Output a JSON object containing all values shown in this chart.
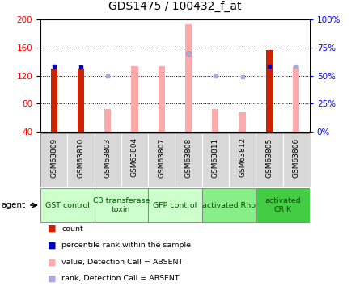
{
  "title": "GDS1475 / 100432_f_at",
  "samples": [
    "GSM63809",
    "GSM63810",
    "GSM63803",
    "GSM63804",
    "GSM63807",
    "GSM63808",
    "GSM63811",
    "GSM63812",
    "GSM63805",
    "GSM63806"
  ],
  "group_spans": [
    {
      "start": 0,
      "end": 2,
      "name": "GST control",
      "color": "#ccffcc"
    },
    {
      "start": 2,
      "end": 4,
      "name": "C3 transferase\ntoxin",
      "color": "#ccffcc"
    },
    {
      "start": 4,
      "end": 6,
      "name": "GFP control",
      "color": "#ccffcc"
    },
    {
      "start": 6,
      "end": 8,
      "name": "activated Rho",
      "color": "#88ee88"
    },
    {
      "start": 8,
      "end": 10,
      "name": "activated\nCRIK",
      "color": "#44cc44"
    }
  ],
  "red_bars": [
    130,
    130,
    null,
    null,
    null,
    null,
    null,
    null,
    157,
    null
  ],
  "blue_dots": [
    133,
    132,
    null,
    null,
    null,
    152,
    null,
    null,
    134,
    null
  ],
  "pink_bars": [
    null,
    null,
    72,
    133,
    133,
    193,
    73,
    68,
    null,
    133
  ],
  "lavender_dots": [
    null,
    null,
    120,
    null,
    null,
    152,
    120,
    118,
    null,
    133
  ],
  "ylim_left": [
    40,
    200
  ],
  "ylim_right": [
    0,
    100
  ],
  "yticks_left": [
    40,
    80,
    120,
    160,
    200
  ],
  "yticks_right": [
    0,
    25,
    50,
    75,
    100
  ],
  "legend_items": [
    {
      "label": "count",
      "color": "#cc2200"
    },
    {
      "label": "percentile rank within the sample",
      "color": "#0000bb"
    },
    {
      "label": "value, Detection Call = ABSENT",
      "color": "#ffaaaa"
    },
    {
      "label": "rank, Detection Call = ABSENT",
      "color": "#aaaadd"
    }
  ]
}
